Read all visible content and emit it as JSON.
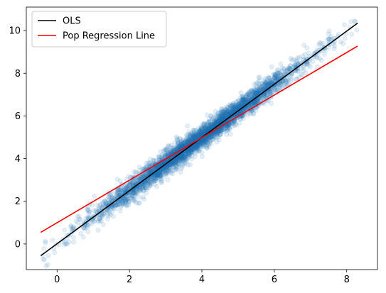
{
  "chart_data": {
    "type": "scatter",
    "title": "",
    "xlabel": "",
    "ylabel": "",
    "xlim": [
      -0.85,
      8.85
    ],
    "ylim": [
      -1.2,
      11.1
    ],
    "xticks": [
      0,
      2,
      4,
      6,
      8
    ],
    "yticks": [
      0,
      2,
      4,
      6,
      8,
      10
    ],
    "grid": false,
    "legend_position": "top-left",
    "scatter_color": "#1f77b4",
    "scatter_alpha": 0.12,
    "scatter_cloud": {
      "x_min": -0.45,
      "x_max": 8.3,
      "center_line": {
        "slope": 1.25,
        "intercept": 0.0
      },
      "band_half_width_y": 0.45
    },
    "series": [
      {
        "name": "OLS",
        "color": "#000000",
        "x": [
          -0.45,
          8.3
        ],
        "y": [
          -0.55,
          10.35
        ]
      },
      {
        "name": "Pop Regression Line",
        "color": "#ff0000",
        "x": [
          -0.45,
          8.3
        ],
        "y": [
          0.55,
          9.27
        ]
      }
    ]
  }
}
